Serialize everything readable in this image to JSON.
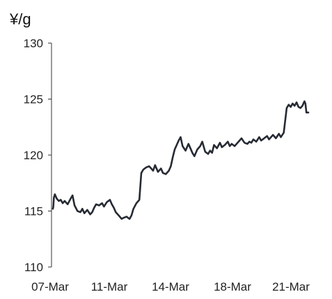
{
  "chart_data": {
    "type": "line",
    "ylabel": "¥/g",
    "ylim": [
      110,
      130
    ],
    "yticks": [
      "130",
      "125",
      "120",
      "115",
      "110"
    ],
    "xticks": [
      "07-Mar",
      "11-Mar",
      "14-Mar",
      "18-Mar",
      "21-Mar"
    ],
    "grid": false,
    "line_color": "#262a33",
    "series": [
      {
        "x": [
          0,
          0.02,
          0.05,
          0.1,
          0.2,
          0.3,
          0.4,
          0.5,
          0.6,
          0.75,
          0.9,
          1.0,
          1.1,
          1.25,
          1.4,
          1.5,
          1.6,
          1.75,
          1.9,
          2.0,
          2.1,
          2.2,
          2.35,
          2.5,
          2.6,
          2.75,
          2.9,
          3.0,
          3.1,
          3.2,
          3.35,
          3.5,
          3.6,
          3.75,
          3.9,
          4.0,
          4.1,
          4.25,
          4.4,
          4.5,
          4.6,
          4.75,
          4.9,
          5.0,
          5.1,
          5.2,
          5.35,
          5.5,
          5.6,
          5.75,
          5.9,
          6.0,
          6.05,
          6.1,
          6.2,
          6.3,
          6.4,
          6.5,
          6.6,
          6.75,
          6.9,
          7.0,
          7.1,
          7.2,
          7.35,
          7.5,
          7.6,
          7.75,
          7.9,
          8.0,
          8.1,
          8.2,
          8.35,
          8.5,
          8.6,
          8.75,
          8.9,
          9.0,
          9.1,
          9.25,
          9.4,
          9.5,
          9.6,
          9.75,
          9.9,
          10.0,
          10.1,
          10.2,
          10.35,
          10.5,
          10.6,
          10.75,
          10.9,
          11.0,
          11.1,
          11.2,
          11.35,
          11.5,
          11.6,
          11.75,
          11.9,
          12.0,
          12.1,
          12.2,
          12.3,
          12.4,
          12.45,
          12.5,
          12.6,
          12.7,
          12.8,
          12.85,
          12.9,
          13.0
        ],
        "y": [
          115.2,
          115.4,
          116.2,
          116.5,
          116.1,
          115.9,
          116.0,
          115.7,
          115.9,
          115.6,
          116.1,
          116.4,
          115.5,
          115.0,
          114.9,
          115.2,
          114.8,
          115.1,
          114.7,
          114.9,
          115.3,
          115.6,
          115.5,
          115.7,
          115.4,
          115.8,
          116.0,
          115.6,
          115.3,
          114.9,
          114.6,
          114.3,
          114.4,
          114.5,
          114.3,
          114.6,
          115.2,
          115.7,
          116.0,
          118.4,
          118.7,
          118.9,
          119.0,
          118.8,
          118.6,
          119.1,
          118.5,
          118.8,
          118.4,
          118.3,
          118.6,
          119.0,
          119.4,
          119.8,
          120.5,
          120.9,
          121.3,
          121.6,
          120.8,
          120.4,
          121.0,
          120.6,
          120.2,
          119.9,
          120.5,
          120.8,
          121.2,
          120.3,
          120.1,
          120.4,
          120.2,
          120.9,
          120.6,
          121.1,
          120.7,
          120.9,
          121.2,
          120.8,
          121.0,
          120.8,
          121.1,
          121.3,
          121.5,
          121.1,
          121.0,
          121.2,
          121.1,
          121.4,
          121.2,
          121.6,
          121.3,
          121.5,
          121.7,
          121.4,
          121.6,
          121.8,
          121.5,
          121.9,
          121.6,
          122.0,
          124.2,
          124.5,
          124.3,
          124.6,
          124.4,
          124.7,
          124.5,
          124.3,
          124.2,
          124.4,
          124.8,
          124.6,
          123.8,
          123.8
        ]
      }
    ]
  }
}
